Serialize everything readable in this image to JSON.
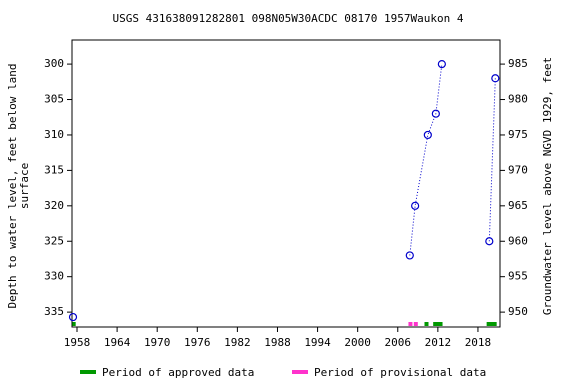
{
  "chart_data": {
    "type": "scatter",
    "title": "USGS 431638091282801 098N05W30ACDC 08170 1957Waukon 4",
    "y_label": [
      "Depth to water level, feet below land",
      "surface"
    ],
    "y2_label": "Groundwater level above NGVD 1929, feet",
    "xlim": [
      1957.25,
      2021.3
    ],
    "xticks": [
      1958,
      1964,
      1970,
      1976,
      1982,
      1988,
      1994,
      2000,
      2006,
      2012,
      2018
    ],
    "ylim": [
      337.1,
      296.6
    ],
    "yticks": [
      300,
      305,
      310,
      315,
      320,
      325,
      330,
      335
    ],
    "y2lim": [
      947.9,
      988.4
    ],
    "y2ticks": [
      950,
      955,
      960,
      965,
      970,
      975,
      980,
      985
    ],
    "series": [
      {
        "color": "#0000cc",
        "x": [
          1957.4,
          null,
          2007.8,
          2008.6,
          2010.5,
          2011.7,
          2012.6,
          null,
          2019.7,
          2020.6
        ],
        "values": [
          335.7,
          null,
          327,
          320,
          310,
          307,
          300,
          null,
          325,
          302
        ]
      }
    ],
    "periods": [
      {
        "name": "Period of approved data",
        "color": "#009900",
        "spans": [
          [
            1957.3,
            1957.8
          ],
          [
            2010.0,
            2010.6
          ],
          [
            2011.3,
            2012.7
          ],
          [
            2019.3,
            2020.8
          ]
        ]
      },
      {
        "name": "Period of provisional data",
        "color": "#ff33cc",
        "spans": [
          [
            2007.6,
            2008.2
          ],
          [
            2008.4,
            2009.0
          ]
        ]
      }
    ]
  }
}
